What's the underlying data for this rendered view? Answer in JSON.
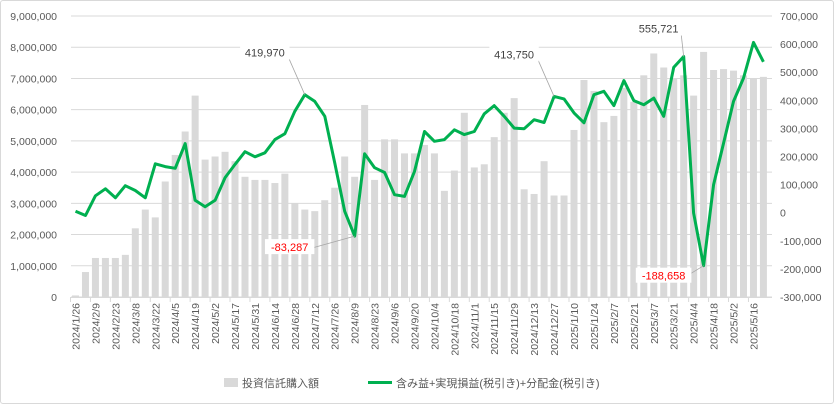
{
  "chart_data": {
    "type": "bar+line",
    "title": "",
    "x_tick_labels": [
      "2024/1/26",
      "2024/2/9",
      "2024/2/23",
      "2024/3/8",
      "2024/3/22",
      "2024/4/5",
      "2024/4/19",
      "2024/5/2",
      "2024/5/17",
      "2024/5/31",
      "2024/6/14",
      "2024/6/28",
      "2024/7/12",
      "2024/7/26",
      "2024/8/9",
      "2024/8/23",
      "2024/9/6",
      "2024/9/20",
      "2024/10/4",
      "2024/10/18",
      "2024/11/1",
      "2024/11/15",
      "2024/11/29",
      "2024/12/13",
      "2024/12/27",
      "2025/1/10",
      "2025/1/24",
      "2025/2/7",
      "2025/2/21",
      "2025/3/7",
      "2025/3/21",
      "2025/4/4",
      "2025/4/18",
      "2025/5/2",
      "2025/5/16"
    ],
    "tick_every": 2,
    "left_axis": {
      "min": 0,
      "max": 9000000,
      "step": 1000000,
      "ticks": [
        "0",
        "1,000,000",
        "2,000,000",
        "3,000,000",
        "4,000,000",
        "5,000,000",
        "6,000,000",
        "7,000,000",
        "8,000,000",
        "9,000,000"
      ]
    },
    "right_axis": {
      "min": -300000,
      "max": 700000,
      "step": 100000,
      "ticks": [
        "-300,000",
        "-200,000",
        "-100,000",
        "0",
        "100,000",
        "200,000",
        "300,000",
        "400,000",
        "500,000",
        "600,000",
        "700,000"
      ]
    },
    "series": [
      {
        "name": "投資信託購入額",
        "type": "bar",
        "axis": "left",
        "color": "#d9d9d9",
        "values": [
          50000,
          800000,
          1250000,
          1250000,
          1250000,
          1350000,
          2200000,
          2800000,
          2550000,
          3700000,
          4550000,
          5300000,
          6450000,
          4400000,
          4500000,
          4650000,
          4350000,
          3850000,
          3750000,
          3750000,
          3650000,
          3950000,
          3000000,
          2800000,
          2750000,
          3100000,
          3500000,
          4500000,
          3850000,
          6150000,
          3750000,
          5050000,
          5050000,
          4600000,
          4600000,
          4870000,
          4600000,
          3400000,
          4050000,
          5900000,
          4150000,
          4250000,
          5120000,
          5900000,
          6370000,
          3450000,
          3300000,
          4350000,
          3250000,
          3250000,
          5350000,
          6950000,
          6600000,
          5600000,
          5800000,
          6700000,
          6250000,
          7100000,
          7800000,
          7350000,
          7000000,
          7100000,
          6450000,
          7850000,
          7270000,
          7300000,
          7250000,
          7100000,
          7000000,
          7050000
        ]
      },
      {
        "name": "含み益+実現損益(税引き)+分配金(税引き)",
        "type": "line",
        "axis": "right",
        "color": "#00b050",
        "values": [
          5000,
          -10000,
          60000,
          85000,
          53000,
          96000,
          79000,
          53000,
          174000,
          164000,
          158000,
          246000,
          44000,
          21000,
          44000,
          125000,
          172000,
          217000,
          199000,
          213000,
          260000,
          281000,
          361000,
          419970,
          396000,
          343000,
          178000,
          5000,
          -83287,
          210000,
          160000,
          143000,
          64000,
          58000,
          147000,
          289000,
          254000,
          260000,
          295000,
          278000,
          289000,
          352000,
          381000,
          343000,
          301000,
          299000,
          331000,
          321000,
          413750,
          405000,
          355000,
          320000,
          420000,
          432000,
          381000,
          470000,
          399000,
          384000,
          408000,
          343000,
          517000,
          555721,
          -1000,
          -188658,
          100000,
          248000,
          396000,
          479000,
          606000,
          537000
        ]
      }
    ],
    "annotations": [
      {
        "index": 23,
        "text": "419,970",
        "color": "#404040"
      },
      {
        "index": 28,
        "text": "-83,287",
        "color": "#ff0000"
      },
      {
        "index": 48,
        "text": "413,750",
        "color": "#404040"
      },
      {
        "index": 61,
        "text": "555,721",
        "color": "#404040"
      },
      {
        "index": 63,
        "text": "-188,658",
        "color": "#ff0000"
      }
    ],
    "grid": true,
    "legend_position": "bottom"
  }
}
